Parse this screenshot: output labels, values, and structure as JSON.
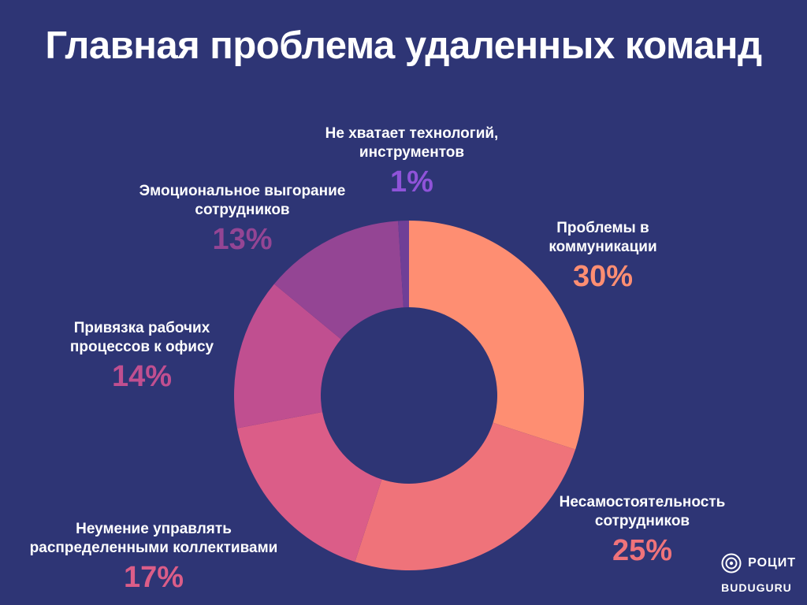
{
  "chart_data": {
    "type": "pie",
    "title": "Главная проблема удаленных команд",
    "slices": [
      {
        "label": "Проблемы в коммуникации",
        "value": 30,
        "pct_label": "30%",
        "color": "#fe8e72"
      },
      {
        "label": "Несамостоятельность сотрудников",
        "value": 25,
        "pct_label": "25%",
        "color": "#ef737a"
      },
      {
        "label": "Неумение управлять распределенными коллективами",
        "value": 17,
        "pct_label": "17%",
        "color": "#db5d88"
      },
      {
        "label": "Привязка рабочих процессов к офису",
        "value": 14,
        "pct_label": "14%",
        "color": "#c04f90"
      },
      {
        "label": "Эмоциональное выгорание сотрудников",
        "value": 13,
        "pct_label": "13%",
        "color": "#944594"
      },
      {
        "label": "Не хватает технологий, инструментов",
        "value": 1,
        "pct_label": "1%",
        "color": "#6f3f97"
      }
    ],
    "label_colors": [
      "#fe8e72",
      "#ef737a",
      "#db5d88",
      "#c04f90",
      "#944594",
      "#8f53d9"
    ]
  },
  "brand": {
    "logo_text": "РОЦИТ",
    "sub_text": "BUDUGURU"
  }
}
